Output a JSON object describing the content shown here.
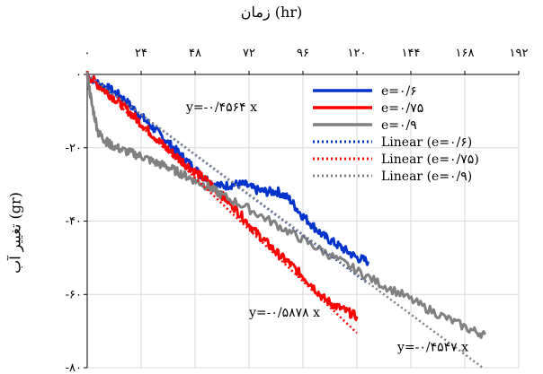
{
  "chart_data": {
    "type": "line",
    "xlabel": "زمان (hr)",
    "ylabel": "تغییر آب (gr)",
    "xlim": [
      0,
      192
    ],
    "ylim": [
      -80,
      0
    ],
    "x_ticks": [
      "۰",
      "۲۴",
      "۴۸",
      "۷۲",
      "۹۶",
      "۱۲۰",
      "۱۴۴",
      "۱۶۸",
      "۱۹۲"
    ],
    "y_ticks": [
      "۰",
      "-۲۰",
      "-۴۰",
      "-۶۰",
      "-۸۰"
    ],
    "x_tick_values": [
      0,
      24,
      48,
      72,
      96,
      120,
      144,
      168,
      192
    ],
    "y_tick_values": [
      0,
      -20,
      -40,
      -60,
      -80
    ],
    "grid": true,
    "legend_position": "top-right",
    "series": [
      {
        "name": "e=۰/۶",
        "style": "solid",
        "color": "#0033cc",
        "x": [
          0,
          5,
          10,
          15,
          20,
          25,
          30,
          35,
          40,
          45,
          50,
          55,
          60,
          65,
          70,
          75,
          80,
          85,
          90,
          95,
          100,
          105,
          110,
          115,
          120,
          125
        ],
        "y": [
          0,
          -2.5,
          -4,
          -6,
          -9,
          -12,
          -15,
          -18,
          -21,
          -24,
          -27,
          -29.5,
          -30.5,
          -30,
          -30,
          -31.5,
          -32,
          -32,
          -34,
          -38,
          -41,
          -44,
          -46,
          -48,
          -50,
          -51
        ]
      },
      {
        "name": "e=۰/۷۵",
        "style": "solid",
        "color": "#ff0000",
        "x": [
          0,
          5,
          10,
          15,
          20,
          25,
          30,
          35,
          40,
          45,
          50,
          55,
          60,
          65,
          70,
          75,
          80,
          85,
          90,
          95,
          100,
          105,
          110,
          115,
          120
        ],
        "y": [
          0,
          -3,
          -5.5,
          -8,
          -11,
          -14,
          -17,
          -20,
          -22.5,
          -25,
          -27.5,
          -30,
          -33,
          -36,
          -39.5,
          -43,
          -46,
          -49,
          -51.5,
          -54.5,
          -57.5,
          -61,
          -63,
          -64.5,
          -66
        ]
      },
      {
        "name": "e=۰/۹",
        "style": "solid",
        "color": "#808080",
        "x": [
          0,
          2,
          5,
          8,
          10,
          15,
          20,
          25,
          30,
          35,
          40,
          45,
          50,
          55,
          60,
          70,
          80,
          90,
          100,
          110,
          120,
          130,
          140,
          150,
          160,
          170,
          177
        ],
        "y": [
          0,
          -8,
          -16,
          -18,
          -19,
          -20.5,
          -21.5,
          -22.5,
          -24,
          -25,
          -26.5,
          -28,
          -29.5,
          -31,
          -33,
          -36,
          -39.5,
          -43,
          -46.5,
          -50,
          -53.5,
          -57,
          -60,
          -63.5,
          -66.5,
          -69.5,
          -71
        ]
      },
      {
        "name": "Linear (e=۰/۶)",
        "style": "dotted",
        "color": "#0033cc",
        "x": [
          0,
          125
        ],
        "y": [
          0,
          -57.05
        ]
      },
      {
        "name": "Linear (e=۰/۷۵)",
        "style": "dotted",
        "color": "#ff0000",
        "x": [
          0,
          120
        ],
        "y": [
          0,
          -70.54
        ]
      },
      {
        "name": "Linear (e=۰/۹)",
        "style": "dotted",
        "color": "#808080",
        "x": [
          0,
          176
        ],
        "y": [
          0,
          -80
        ]
      }
    ],
    "annotations": [
      {
        "text": "y=-۰/۴۵۶۴ x",
        "x": 44,
        "y": -10
      },
      {
        "text": "y=-۰/۵۸۷۸ x",
        "x": 72,
        "y": -66
      },
      {
        "text": "y=-۰/۴۵۴۷ x",
        "x": 138,
        "y": -75.5
      }
    ]
  }
}
